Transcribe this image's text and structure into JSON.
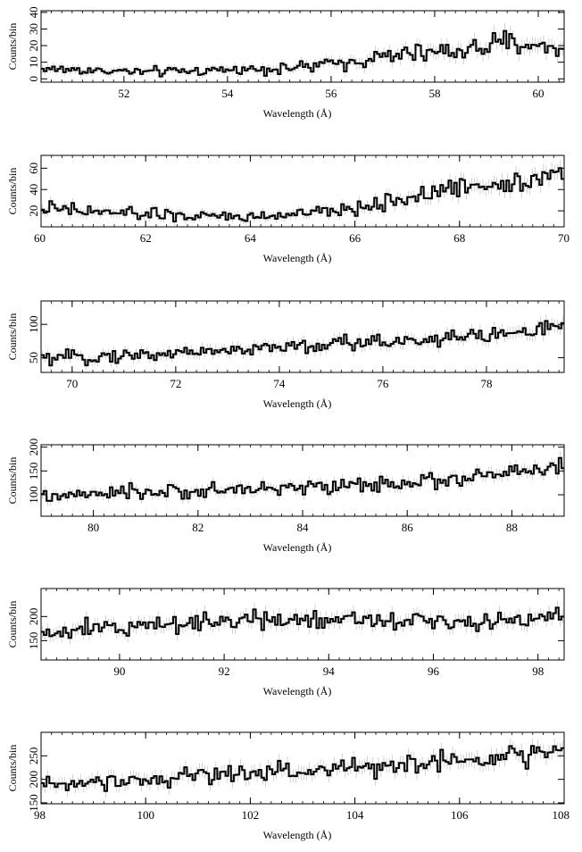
{
  "chart_data": [
    {
      "type": "line",
      "title": "",
      "xlabel": "Wavelength (Å)",
      "ylabel": "Counts/bin",
      "xlim": [
        50.4,
        60.5
      ],
      "ylim": [
        -2,
        41
      ],
      "xticks": [
        52,
        54,
        56,
        58,
        60
      ],
      "yticks": [
        0,
        10,
        20,
        30,
        40
      ],
      "grid": false,
      "series": [
        {
          "name": "",
          "x": [
            50.5,
            51.5,
            52.5,
            53.5,
            54.5,
            55.5,
            56.5,
            57.5,
            58.5,
            59.5,
            60.4
          ],
          "y": [
            6,
            5,
            4,
            5,
            6,
            7,
            11,
            15,
            17,
            22,
            18
          ]
        }
      ]
    },
    {
      "type": "line",
      "title": "",
      "xlabel": "Wavelength (Å)",
      "ylabel": "Counts/bin",
      "xlim": [
        60,
        70
      ],
      "ylim": [
        5,
        72
      ],
      "xticks": [
        60,
        62,
        64,
        66,
        68,
        70
      ],
      "yticks": [
        20,
        40,
        60
      ],
      "grid": false,
      "series": [
        {
          "name": "",
          "x": [
            60,
            61,
            62,
            63,
            64,
            65,
            66,
            67,
            68,
            69,
            70
          ],
          "y": [
            22,
            19,
            17,
            15,
            14,
            17,
            22,
            32,
            42,
            47,
            57
          ]
        }
      ]
    },
    {
      "type": "line",
      "title": "",
      "xlabel": "Wavelength (Å)",
      "ylabel": "Counts/bin",
      "xlim": [
        69.4,
        79.5
      ],
      "ylim": [
        28,
        135
      ],
      "xticks": [
        70,
        72,
        74,
        76,
        78
      ],
      "yticks": [
        50,
        100
      ],
      "grid": false,
      "series": [
        {
          "name": "",
          "x": [
            69.5,
            70.5,
            71.5,
            72.5,
            73.5,
            74.5,
            75.5,
            76.5,
            77.5,
            78.5,
            79.4
          ],
          "y": [
            48,
            52,
            55,
            60,
            63,
            67,
            72,
            77,
            81,
            87,
            96
          ]
        }
      ]
    },
    {
      "type": "line",
      "title": "",
      "xlabel": "Wavelength (Å)",
      "ylabel": "Counts/bin",
      "xlim": [
        79,
        89
      ],
      "ylim": [
        55,
        205
      ],
      "xticks": [
        80,
        82,
        84,
        86,
        88
      ],
      "yticks": [
        100,
        150,
        200
      ],
      "grid": false,
      "series": [
        {
          "name": "",
          "x": [
            79,
            80,
            81,
            82,
            83,
            84,
            85,
            86,
            87,
            88,
            89
          ],
          "y": [
            95,
            100,
            105,
            108,
            112,
            116,
            120,
            126,
            133,
            145,
            160
          ]
        }
      ]
    },
    {
      "type": "line",
      "title": "",
      "xlabel": "Wavelength (Å)",
      "ylabel": "Counts/bin",
      "xlim": [
        88.5,
        98.5
      ],
      "ylim": [
        110,
        258
      ],
      "xticks": [
        90,
        92,
        94,
        96,
        98
      ],
      "yticks": [
        150,
        200
      ],
      "grid": false,
      "series": [
        {
          "name": "",
          "x": [
            88.5,
            89.5,
            90.5,
            91.5,
            92.5,
            93.5,
            94.5,
            95.5,
            96.5,
            97.5,
            98.4
          ],
          "y": [
            162,
            173,
            183,
            190,
            193,
            197,
            196,
            193,
            191,
            195,
            200
          ]
        }
      ]
    },
    {
      "type": "line",
      "title": "",
      "xlabel": "Wavelength (Å)",
      "ylabel": "Counts/bin",
      "xlim": [
        98,
        108
      ],
      "ylim": [
        148,
        300
      ],
      "xticks": [
        98,
        100,
        102,
        104,
        106,
        108
      ],
      "yticks": [
        150,
        200,
        250
      ],
      "grid": false,
      "series": [
        {
          "name": "",
          "x": [
            98,
            99,
            100,
            101,
            102,
            103,
            104,
            105,
            106,
            107,
            108
          ],
          "y": [
            188,
            196,
            203,
            209,
            215,
            220,
            225,
            232,
            240,
            250,
            262
          ]
        }
      ]
    }
  ]
}
